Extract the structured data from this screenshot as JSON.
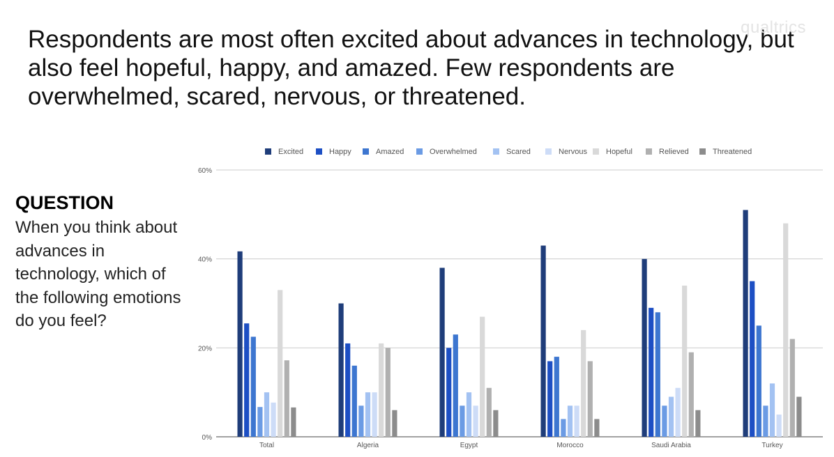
{
  "headline": "Respondents are most often excited about advances in technology, but also feel hopeful, happy, and amazed. Few respondents are overwhelmed, scared, nervous, or threatened.",
  "logo": "qualtrics",
  "question": {
    "heading": "QUESTION",
    "text": "When you think about advances in technology, which of the following emotions do you feel?"
  },
  "chart_data": {
    "type": "bar",
    "title": "",
    "xlabel": "",
    "ylabel": "",
    "ylim": [
      0,
      60
    ],
    "yticks": [
      0,
      20,
      40,
      60
    ],
    "ytick_labels": [
      "0%",
      "20%",
      "40%",
      "60%"
    ],
    "legend_position": "top",
    "grid": true,
    "categories": [
      "Total",
      "Algeria",
      "Egypt",
      "Morocco",
      "Saudi Arabia",
      "Turkey"
    ],
    "series": [
      {
        "name": "Excited",
        "color": "#1f3d7a",
        "values": [
          41.7,
          30,
          38,
          43,
          40,
          51
        ]
      },
      {
        "name": "Happy",
        "color": "#1d4fc4",
        "values": [
          25.5,
          21,
          20,
          17,
          29,
          35
        ]
      },
      {
        "name": "Amazed",
        "color": "#3d76d0",
        "values": [
          22.5,
          16,
          23,
          18,
          28,
          25
        ]
      },
      {
        "name": "Overwhelmed",
        "color": "#6b9be4",
        "values": [
          6.7,
          7,
          7,
          4,
          7,
          7
        ]
      },
      {
        "name": "Scared",
        "color": "#a3c2f2",
        "values": [
          10,
          10,
          10,
          7,
          9,
          12
        ]
      },
      {
        "name": "Nervous",
        "color": "#cddcf7",
        "values": [
          7.7,
          10,
          7,
          7,
          11,
          5
        ]
      },
      {
        "name": "Hopeful",
        "color": "#d9d9d9",
        "values": [
          33,
          21,
          27,
          24,
          34,
          48
        ]
      },
      {
        "name": "Relieved",
        "color": "#b0b0b0",
        "values": [
          17.2,
          20,
          11,
          17,
          19,
          22
        ]
      },
      {
        "name": "Threatened",
        "color": "#8c8c8c",
        "values": [
          6.6,
          6,
          6,
          4,
          6,
          9
        ]
      }
    ]
  }
}
